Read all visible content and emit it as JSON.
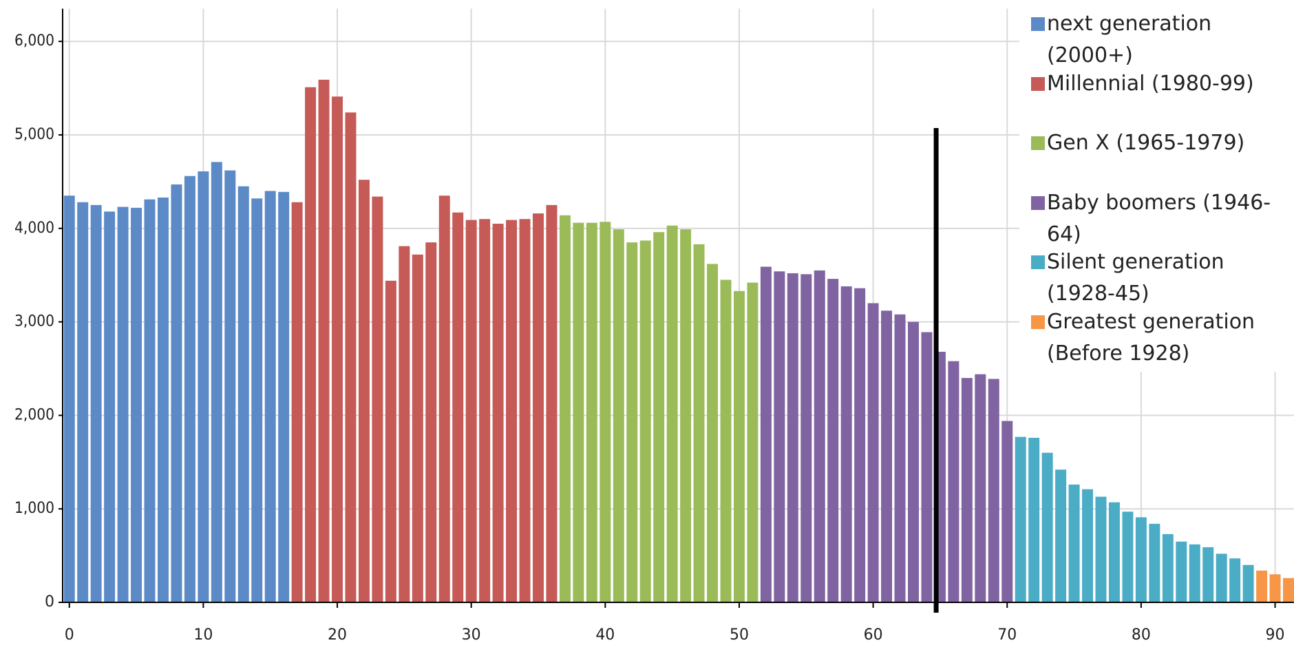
{
  "chart_data": {
    "type": "bar",
    "xlim": [
      -0.5,
      91.4
    ],
    "xticks": [
      0,
      10,
      20,
      30,
      40,
      50,
      60,
      70,
      80,
      90
    ],
    "ylim": [
      0,
      6350
    ],
    "yticks": [
      0,
      {
        "value": 1000,
        "label": "1,000"
      },
      {
        "value": 2000,
        "label": "2,000"
      },
      {
        "value": 3000,
        "label": "3,000"
      },
      {
        "value": 4000,
        "label": "4,000"
      },
      {
        "value": 5000,
        "label": "5,000"
      },
      {
        "value": 6000,
        "label": "6,000"
      }
    ],
    "grid": true,
    "legend": "top-right",
    "reference_line_x": 64.7,
    "series": [
      {
        "name": "next generation (2000+)",
        "color": "#5b8ac6",
        "x": [
          0,
          1,
          2,
          3,
          4,
          5,
          6,
          7,
          8,
          9,
          10,
          11,
          12,
          13,
          14,
          15,
          16
        ],
        "values": [
          4350,
          4280,
          4250,
          4180,
          4230,
          4220,
          4310,
          4330,
          4470,
          4560,
          4610,
          4710,
          4620,
          4450,
          4320,
          4400,
          4390
        ]
      },
      {
        "name": "Millennial (1980-99)",
        "color": "#c55a57",
        "x": [
          17,
          18,
          19,
          20,
          21,
          22,
          23,
          24,
          25,
          26,
          27,
          28,
          29,
          30,
          31,
          32,
          33,
          34,
          35,
          36
        ],
        "values": [
          4280,
          5510,
          5590,
          5410,
          5240,
          4520,
          4340,
          3440,
          3810,
          3720,
          3850,
          4350,
          4170,
          4090,
          4100,
          4050,
          4090,
          4100,
          4160,
          4250
        ]
      },
      {
        "name": "Gen X (1965-1979)",
        "color": "#9bbb59",
        "x": [
          37,
          38,
          39,
          40,
          41,
          42,
          43,
          44,
          45,
          46,
          47,
          48,
          49,
          50,
          51
        ],
        "values": [
          4140,
          4060,
          4060,
          4070,
          3990,
          3850,
          3870,
          3960,
          4030,
          3990,
          3830,
          3620,
          3450,
          3330,
          3420
        ]
      },
      {
        "name": "Baby boomers (1946-64)",
        "color": "#8064a2",
        "x": [
          52,
          53,
          54,
          55,
          56,
          57,
          58,
          59,
          60,
          61,
          62,
          63,
          64,
          65,
          66,
          67,
          68,
          69,
          70
        ],
        "values": [
          3590,
          3540,
          3520,
          3510,
          3550,
          3460,
          3380,
          3360,
          3200,
          3120,
          3080,
          3000,
          2890,
          2680,
          2580,
          2400,
          2440,
          2390,
          1940
        ]
      },
      {
        "name": "Silent generation (1928-45)",
        "color": "#4bacc6",
        "x": [
          71,
          72,
          73,
          74,
          75,
          76,
          77,
          78,
          79,
          80,
          81,
          82,
          83,
          84,
          85,
          86,
          87,
          88
        ],
        "values": [
          1770,
          1760,
          1600,
          1420,
          1260,
          1210,
          1130,
          1070,
          970,
          910,
          840,
          730,
          650,
          620,
          590,
          520,
          470,
          400
        ]
      },
      {
        "name": "Greatest generation (Before 1928)",
        "color": "#f79646",
        "x": [
          89,
          90,
          91
        ],
        "values": [
          340,
          300,
          260
        ]
      }
    ]
  }
}
